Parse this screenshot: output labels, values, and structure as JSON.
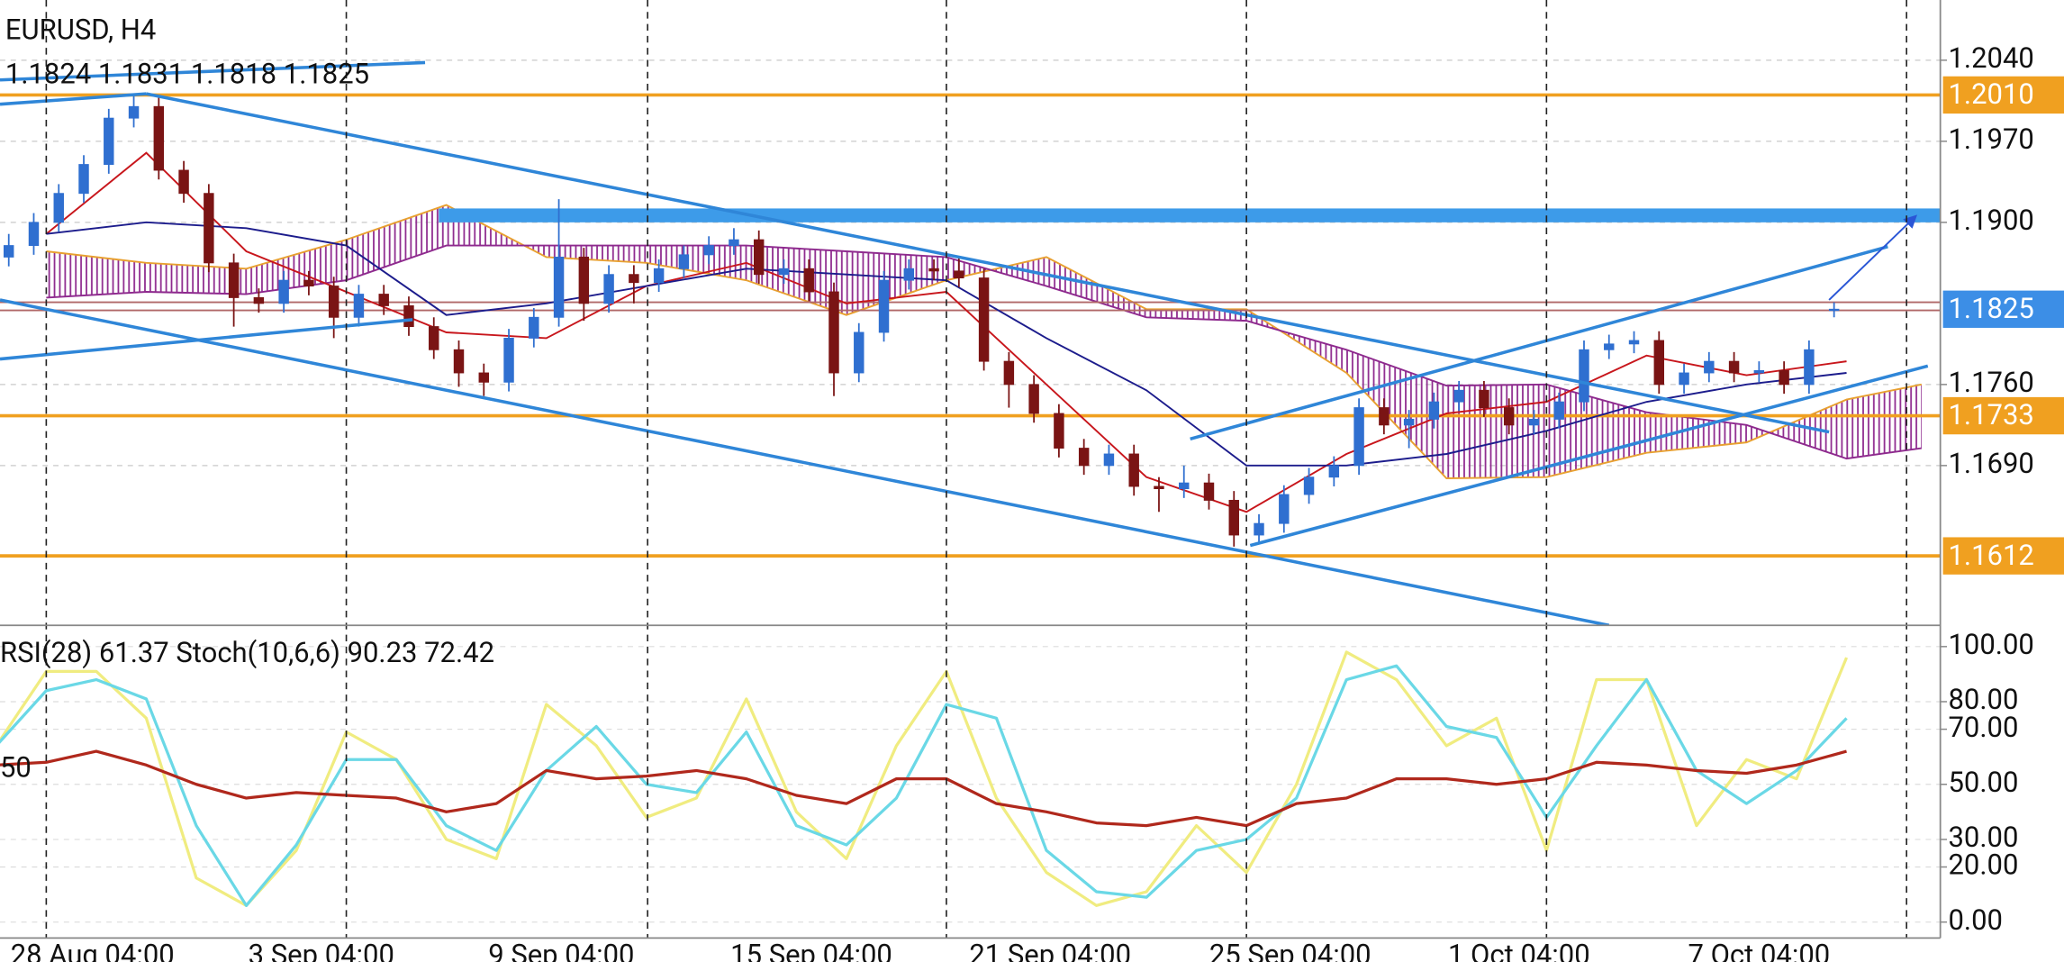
{
  "chart_data": [
    {
      "type": "candlestick",
      "title": "EURUSD, H4",
      "subtitle": "1.1824 1.1831 1.1818 1.1825",
      "x": [
        -3,
        -1,
        1,
        3,
        5,
        7,
        9,
        11,
        13,
        15,
        17,
        19,
        21,
        23,
        25,
        27,
        29,
        31,
        33,
        35,
        37,
        39,
        41,
        43,
        45,
        47,
        49,
        51,
        53,
        55,
        57,
        59,
        61,
        63,
        65,
        67,
        69,
        71,
        73,
        75,
        77,
        79,
        81,
        83,
        85,
        87,
        89,
        91,
        93,
        95,
        97,
        99,
        101,
        103,
        105,
        107,
        109,
        111,
        113,
        115,
        117,
        119,
        121,
        123,
        125,
        127,
        129,
        131,
        133,
        135,
        137,
        139,
        141,
        143
      ],
      "open": [
        1.187,
        1.188,
        1.19,
        1.1925,
        1.195,
        1.199,
        1.2,
        1.1945,
        1.1925,
        1.1865,
        1.1835,
        1.183,
        1.185,
        1.1845,
        1.1818,
        1.1838,
        1.1828,
        1.181,
        1.179,
        1.177,
        1.1762,
        1.18,
        1.1818,
        1.187,
        1.183,
        1.1855,
        1.1848,
        1.186,
        1.1872,
        1.188,
        1.1885,
        1.1855,
        1.186,
        1.184,
        1.177,
        1.1805,
        1.185,
        1.186,
        1.1858,
        1.1852,
        1.178,
        1.176,
        1.1735,
        1.1705,
        1.169,
        1.17,
        1.1672,
        1.167,
        1.1675,
        1.166,
        1.163,
        1.164,
        1.1665,
        1.168,
        1.169,
        1.174,
        1.1725,
        1.173,
        1.1745,
        1.1755,
        1.174,
        1.1725,
        1.173,
        1.1745,
        1.179,
        1.1795,
        1.1798,
        1.176,
        1.177,
        1.178,
        1.177,
        1.1772,
        1.176,
        1.1824
      ],
      "high": [
        1.189,
        1.1908,
        1.1933,
        1.1958,
        1.1998,
        1.2011,
        1.2008,
        1.1953,
        1.1933,
        1.1873,
        1.1843,
        1.1858,
        1.1858,
        1.1853,
        1.1846,
        1.1846,
        1.1836,
        1.1818,
        1.1798,
        1.1778,
        1.1808,
        1.1826,
        1.192,
        1.1878,
        1.1863,
        1.1863,
        1.1868,
        1.188,
        1.1888,
        1.1895,
        1.1893,
        1.1868,
        1.1868,
        1.1848,
        1.1813,
        1.1858,
        1.1868,
        1.1868,
        1.187,
        1.186,
        1.1788,
        1.1768,
        1.1743,
        1.1713,
        1.1708,
        1.1708,
        1.168,
        1.169,
        1.1683,
        1.1668,
        1.1648,
        1.1673,
        1.1688,
        1.1698,
        1.1748,
        1.1748,
        1.1738,
        1.1753,
        1.1763,
        1.1763,
        1.1748,
        1.1738,
        1.1753,
        1.1798,
        1.1803,
        1.1806,
        1.1806,
        1.1778,
        1.1788,
        1.1788,
        1.178,
        1.178,
        1.1798,
        1.1831
      ],
      "low": [
        1.1862,
        1.1872,
        1.1892,
        1.1917,
        1.1942,
        1.1982,
        1.1937,
        1.1917,
        1.1857,
        1.181,
        1.1822,
        1.1822,
        1.1837,
        1.18,
        1.181,
        1.182,
        1.1802,
        1.1782,
        1.1758,
        1.175,
        1.1754,
        1.1792,
        1.181,
        1.1815,
        1.1822,
        1.183,
        1.184,
        1.1852,
        1.1864,
        1.1872,
        1.1847,
        1.1847,
        1.1832,
        1.175,
        1.1762,
        1.1797,
        1.1842,
        1.185,
        1.1844,
        1.1772,
        1.174,
        1.1727,
        1.1697,
        1.1682,
        1.1682,
        1.1664,
        1.165,
        1.1662,
        1.1652,
        1.162,
        1.1622,
        1.1632,
        1.1657,
        1.1672,
        1.1682,
        1.1717,
        1.1705,
        1.1722,
        1.1737,
        1.1732,
        1.1717,
        1.1717,
        1.1722,
        1.1737,
        1.1782,
        1.1787,
        1.1752,
        1.1752,
        1.1762,
        1.1762,
        1.1762,
        1.1752,
        1.1752,
        1.1818
      ],
      "close": [
        1.188,
        1.19,
        1.1925,
        1.195,
        1.199,
        1.2,
        1.1945,
        1.1925,
        1.1865,
        1.1835,
        1.183,
        1.185,
        1.1845,
        1.1818,
        1.1838,
        1.1828,
        1.181,
        1.179,
        1.177,
        1.1762,
        1.18,
        1.1818,
        1.187,
        1.183,
        1.1855,
        1.1848,
        1.186,
        1.1872,
        1.188,
        1.1885,
        1.1855,
        1.186,
        1.184,
        1.177,
        1.1805,
        1.185,
        1.186,
        1.1858,
        1.1852,
        1.178,
        1.176,
        1.1735,
        1.1705,
        1.169,
        1.17,
        1.1672,
        1.167,
        1.1675,
        1.166,
        1.163,
        1.164,
        1.1665,
        1.168,
        1.169,
        1.174,
        1.1725,
        1.173,
        1.1745,
        1.1755,
        1.174,
        1.1725,
        1.173,
        1.1745,
        1.179,
        1.1795,
        1.1798,
        1.176,
        1.177,
        1.178,
        1.177,
        1.1772,
        1.176,
        1.179,
        1.1825
      ],
      "up_color": "#2f6fd0",
      "down_color": "#7a1414",
      "xlim": [
        -3.7,
        151.5
      ],
      "xticks": [
        {
          "value": 3.7,
          "label": "28 Aug 04:00"
        },
        {
          "value": 22,
          "label": "3 Sep 04:00"
        },
        {
          "value": 41.2,
          "label": "9 Sep 04:00"
        },
        {
          "value": 61.2,
          "label": "15 Sep 04:00"
        },
        {
          "value": 80.3,
          "label": "21 Sep 04:00"
        },
        {
          "value": 99.5,
          "label": "25 Sep 04:00"
        },
        {
          "value": 117.8,
          "label": "1 Oct 04:00"
        },
        {
          "value": 137,
          "label": "7 Oct 04:00"
        }
      ],
      "separators": [
        0,
        24,
        48.1,
        72,
        96,
        120,
        148.8
      ],
      "ylim": [
        1.1552,
        1.2092
      ],
      "yticks": [
        {
          "value": 1.204,
          "label": "1.2040"
        },
        {
          "value": 1.197,
          "label": "1.1970"
        },
        {
          "value": 1.19,
          "label": "1.1900"
        },
        {
          "value": 1.176,
          "label": "1.1760"
        },
        {
          "value": 1.169,
          "label": "1.1690"
        }
      ],
      "grid": true,
      "levels": [
        {
          "value": 1.201,
          "label": "1.2010",
          "color": "#f0a020",
          "width": 2.5
        },
        {
          "value": 1.1825,
          "label": "1.1825",
          "color": "#3c8ee6",
          "width": 0
        },
        {
          "value": 1.1733,
          "label": "1.1733",
          "color": "#f0a020",
          "width": 2.5
        },
        {
          "value": 1.1612,
          "label": "1.1612",
          "color": "#f0a020",
          "width": 2.5
        }
      ],
      "hlines": [
        {
          "value": 1.1831,
          "color": "#b06868"
        },
        {
          "value": 1.1824,
          "color": "#b06868"
        }
      ],
      "zone": {
        "from": 31.4,
        "low": 1.19,
        "high": 1.1912,
        "color": "#3d9be9"
      },
      "cloud": {
        "x": [
          0,
          8,
          16,
          24,
          32,
          40,
          48,
          56,
          64,
          72,
          80,
          88,
          96,
          104,
          112,
          120,
          128,
          136,
          144,
          150
        ],
        "span_a": [
          1.1875,
          1.1865,
          1.186,
          1.1885,
          1.1915,
          1.187,
          1.1865,
          1.185,
          1.182,
          1.185,
          1.187,
          1.1825,
          1.1825,
          1.177,
          1.1679,
          1.168,
          1.1701,
          1.171,
          1.1747,
          1.176
        ],
        "span_b": [
          1.1835,
          1.184,
          1.1838,
          1.185,
          1.188,
          1.188,
          1.188,
          1.188,
          1.1875,
          1.187,
          1.1845,
          1.1818,
          1.1815,
          1.179,
          1.1759,
          1.176,
          1.1736,
          1.1725,
          1.1696,
          1.1705
        ],
        "color_a": "#e8a030",
        "color_b": "#8e2a8e"
      },
      "indicator_lines": [
        {
          "color": "#c8161c",
          "x": [
            0,
            8,
            16,
            24,
            32,
            40,
            48,
            56,
            64,
            72,
            80,
            88,
            96,
            104,
            112,
            120,
            128,
            136,
            144
          ],
          "values": [
            1.189,
            1.196,
            1.1875,
            1.184,
            1.1805,
            1.18,
            1.1845,
            1.1865,
            1.183,
            1.184,
            1.176,
            1.168,
            1.165,
            1.17,
            1.1735,
            1.1745,
            1.1785,
            1.1768,
            1.178
          ]
        },
        {
          "color": "#1c1c8c",
          "x": [
            0,
            8,
            16,
            24,
            32,
            40,
            48,
            56,
            64,
            72,
            80,
            88,
            96,
            104,
            112,
            120,
            128,
            136,
            144
          ],
          "values": [
            1.189,
            1.19,
            1.1895,
            1.188,
            1.182,
            1.183,
            1.1845,
            1.186,
            1.1855,
            1.185,
            1.18,
            1.1755,
            1.169,
            1.169,
            1.17,
            1.172,
            1.1745,
            1.176,
            1.177
          ]
        }
      ],
      "trendlines": [
        {
          "x": [
            -3.7,
            30.3
          ],
          "y": [
            1.2023,
            1.2038
          ],
          "color": "#2f86d8"
        },
        {
          "x": [
            -3.7,
            8.0
          ],
          "y": [
            1.2002,
            1.2011
          ],
          "color": "#2f86d8"
        },
        {
          "x": [
            8.0,
            142.6
          ],
          "y": [
            1.2011,
            1.1719
          ],
          "color": "#2f86d8"
        },
        {
          "x": [
            -3.7,
            125.0
          ],
          "y": [
            1.1833,
            1.1552
          ],
          "color": "#2f86d8"
        },
        {
          "x": [
            -3.7,
            29.3
          ],
          "y": [
            1.1782,
            1.1816
          ],
          "color": "#2f86d8"
        },
        {
          "x": [
            91.5,
            147.3
          ],
          "y": [
            1.1713,
            1.1879
          ],
          "color": "#2f86d8"
        },
        {
          "x": [
            96.3,
            150.5
          ],
          "y": [
            1.1621,
            1.1776
          ],
          "color": "#2f86d8"
        },
        {
          "x": [
            142.6,
            149.5
          ],
          "y": [
            1.1833,
            1.1905
          ],
          "color": "#2a56d6",
          "arrow": true
        }
      ]
    },
    {
      "type": "line",
      "title": "RSI(28) 61.37 Stoch(10,6,6) 90.23 72.42",
      "left_ticks": [
        50
      ],
      "x": [
        -4,
        0,
        4,
        8,
        12,
        16,
        20,
        24,
        28,
        32,
        36,
        40,
        44,
        48,
        52,
        56,
        60,
        64,
        68,
        72,
        76,
        80,
        84,
        88,
        92,
        96,
        100,
        104,
        108,
        112,
        116,
        120,
        124,
        128,
        132,
        136,
        140,
        144
      ],
      "series": [
        {
          "color": "#f0ec80",
          "values": [
            64,
            91,
            91,
            74,
            16,
            6,
            26,
            69,
            59,
            30,
            23,
            79,
            64,
            38,
            45,
            81,
            40,
            23,
            64,
            91,
            45,
            18,
            6,
            11,
            35,
            18,
            50,
            98,
            88,
            64,
            74,
            26,
            88,
            88,
            35,
            59,
            52,
            96
          ]
        },
        {
          "color": "#6ad8e6",
          "values": [
            64,
            84,
            88,
            81,
            35,
            6,
            28,
            59,
            59,
            35,
            26,
            55,
            71,
            50,
            47,
            69,
            35,
            28,
            45,
            79,
            74,
            26,
            11,
            9,
            26,
            30,
            45,
            88,
            93,
            71,
            67,
            38,
            64,
            88,
            55,
            43,
            55,
            74
          ]
        },
        {
          "color": "#b0281c",
          "values": [
            57,
            58,
            62,
            57,
            50,
            45,
            47,
            46,
            45,
            40,
            43,
            55,
            52,
            53,
            55,
            52,
            46,
            43,
            52,
            52,
            43,
            40,
            36,
            35,
            38,
            35,
            43,
            45,
            52,
            52,
            50,
            52,
            58,
            57,
            55,
            54,
            57,
            62
          ]
        }
      ],
      "ylim": [
        -5.8,
        107.7
      ],
      "yticks": [
        {
          "value": 100,
          "label": "100.00"
        },
        {
          "value": 80,
          "label": "80.00"
        },
        {
          "value": 70,
          "label": "70.00"
        },
        {
          "value": 50,
          "label": "50.00"
        },
        {
          "value": 30,
          "label": "30.00"
        },
        {
          "value": 20,
          "label": "20.00"
        },
        {
          "value": 0,
          "label": "0.00"
        }
      ],
      "grid": true
    }
  ]
}
